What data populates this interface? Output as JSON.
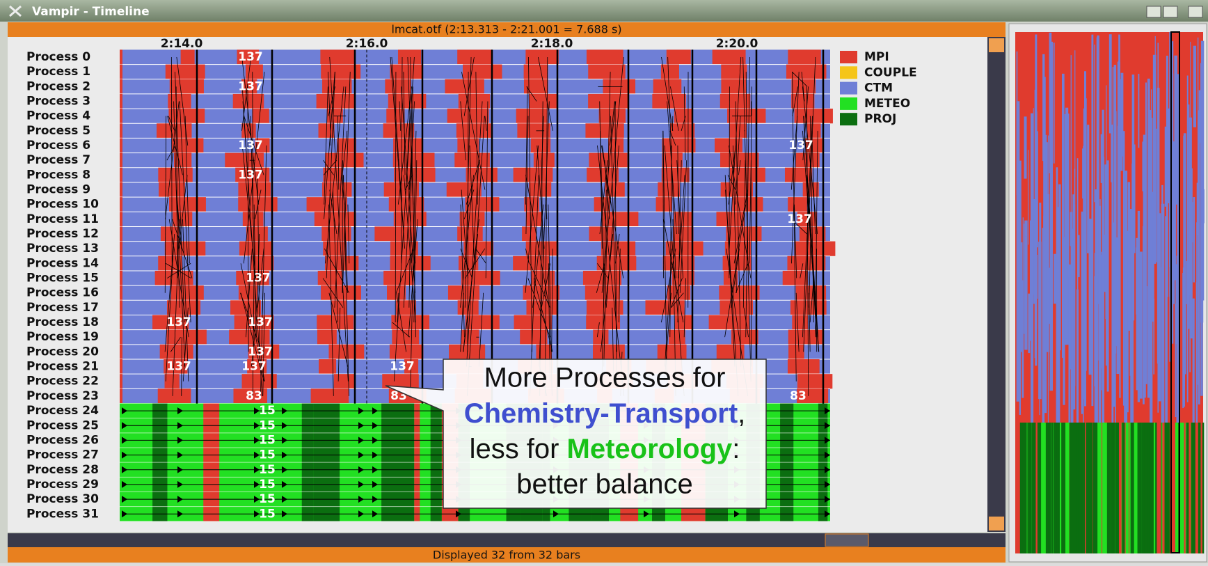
{
  "window": {
    "title": "Vampir - Timeline"
  },
  "header": {
    "file_info": "lmcat.otf (2:13.313 - 2:21.001 = 7.688 s)"
  },
  "timeline": {
    "time_ticks": [
      "2:14.0",
      "2:16.0",
      "2:18.0",
      "2:20.0"
    ],
    "processes": [
      "Process 0",
      "Process 1",
      "Process 2",
      "Process 3",
      "Process 4",
      "Process 5",
      "Process 6",
      "Process 7",
      "Process 8",
      "Process 9",
      "Process 10",
      "Process 11",
      "Process 12",
      "Process 13",
      "Process 14",
      "Process 15",
      "Process 16",
      "Process 17",
      "Process 18",
      "Process 19",
      "Process 20",
      "Process 21",
      "Process 22",
      "Process 23",
      "Process 24",
      "Process 25",
      "Process 26",
      "Process 27",
      "Process 28",
      "Process 29",
      "Process 30",
      "Process 31"
    ],
    "message_labels": [
      137,
      137,
      137,
      137,
      137,
      137,
      137,
      137,
      137,
      137,
      137,
      137,
      137,
      83,
      83,
      83,
      15,
      15,
      15,
      15,
      15,
      15,
      15,
      15
    ]
  },
  "legend": [
    {
      "name": "MPI",
      "color": "#e03b2e"
    },
    {
      "name": "COUPLE",
      "color": "#f5c518"
    },
    {
      "name": "CTM",
      "color": "#6f7fd6"
    },
    {
      "name": "METEO",
      "color": "#22e022"
    },
    {
      "name": "PROJ",
      "color": "#0b6e10"
    }
  ],
  "callout": {
    "line1": "More Processes for",
    "line2_emphasis": "Chemistry-Transport",
    "line2_rest": ",",
    "line3_start": "less for",
    "line3_emphasis": "Meteorology",
    "line3_rest": ":",
    "line4": "better balance"
  },
  "status": {
    "text": "Displayed 32 from 32 bars"
  }
}
